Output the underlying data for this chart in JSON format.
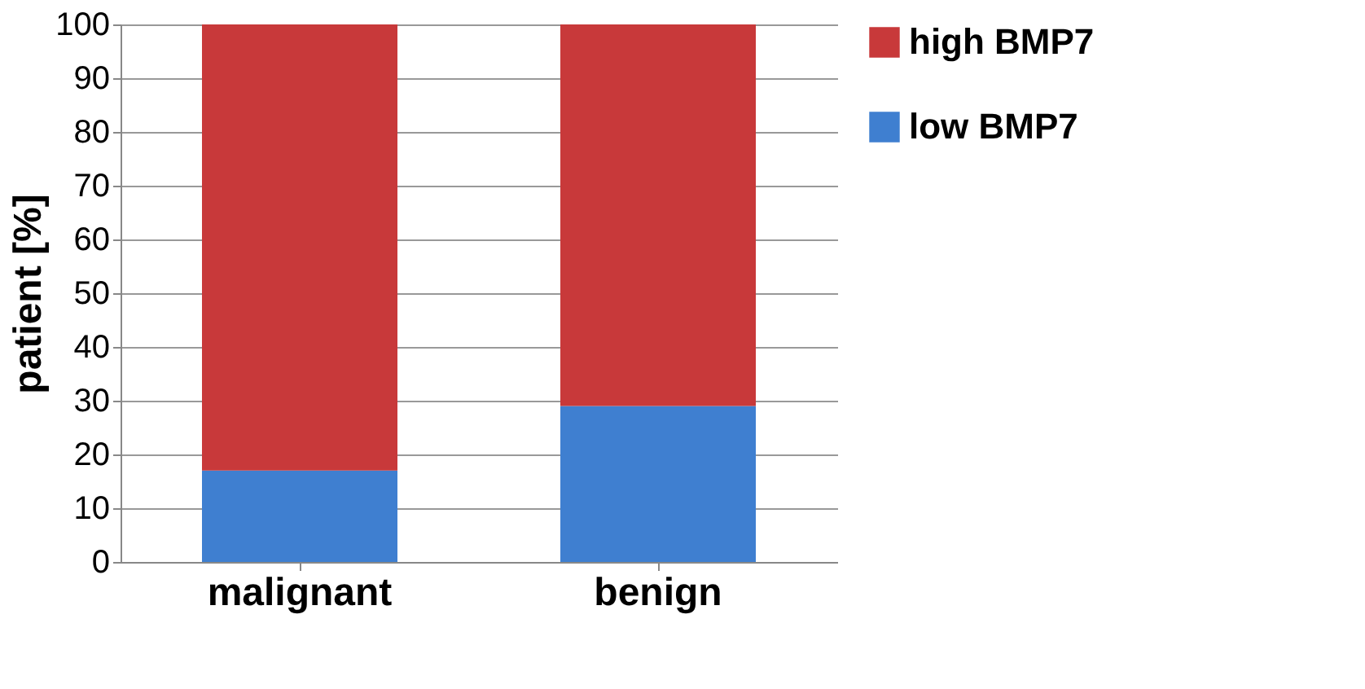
{
  "chart_data": {
    "type": "bar",
    "stacked": true,
    "ylabel": "patient [%]",
    "categories": [
      "malignant",
      "benign"
    ],
    "series": [
      {
        "name": "low BMP7",
        "color": "#3f7fd0",
        "values": [
          17,
          29
        ]
      },
      {
        "name": "high BMP7",
        "color": "#c8393a",
        "values": [
          83,
          71
        ]
      }
    ],
    "ylim": [
      0,
      100
    ],
    "yticks": [
      0,
      10,
      20,
      30,
      40,
      50,
      60,
      70,
      80,
      90,
      100
    ],
    "grid": "y",
    "legend": "right"
  }
}
